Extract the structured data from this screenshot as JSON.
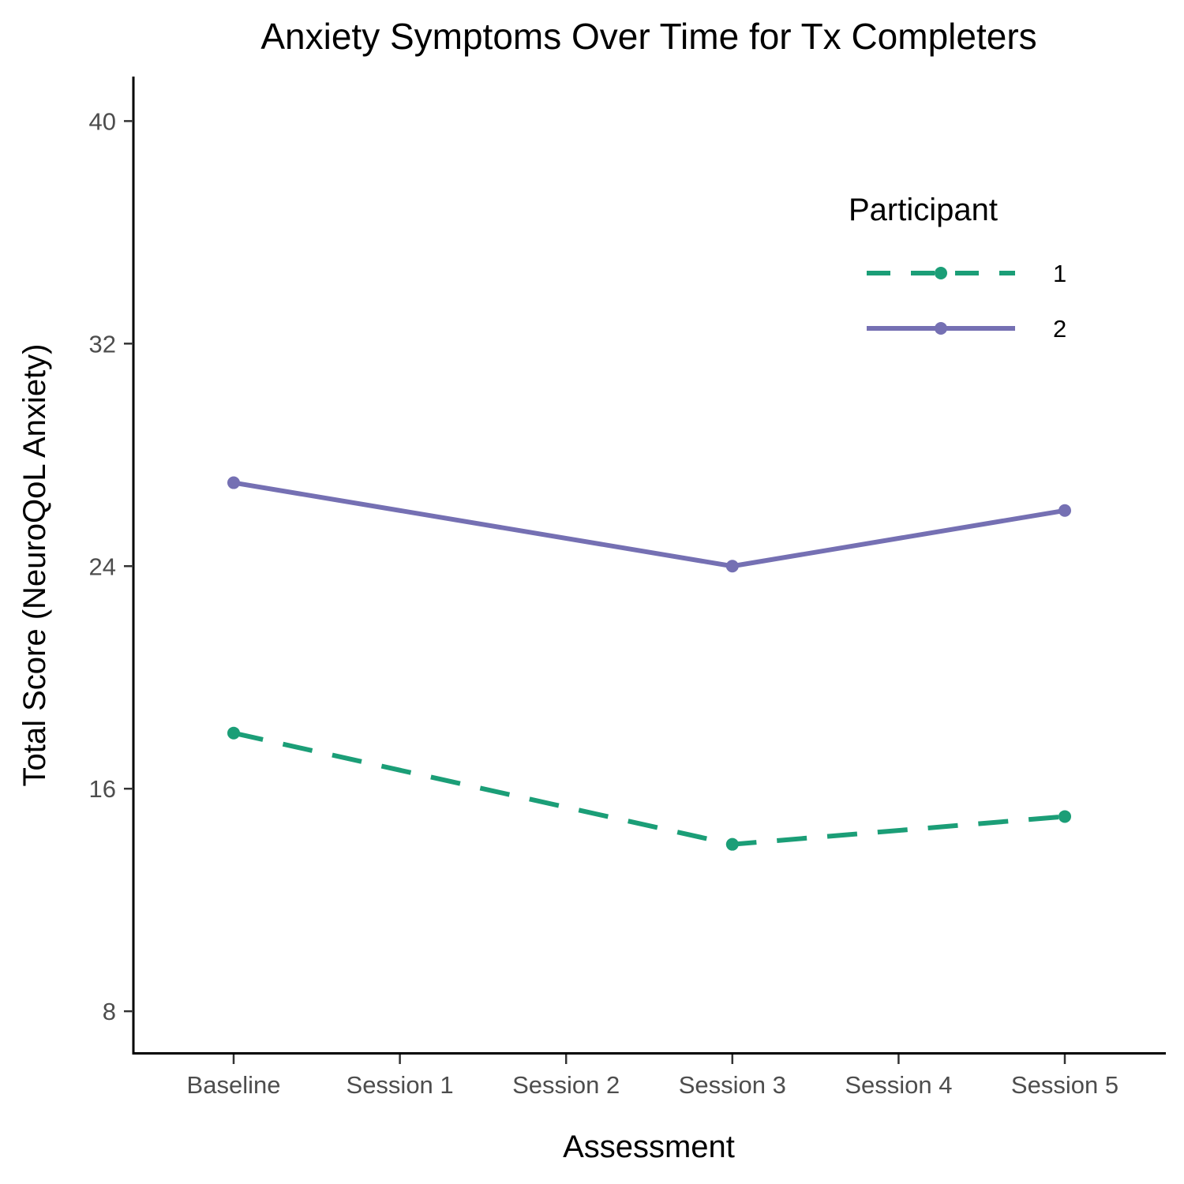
{
  "chart_data": {
    "type": "line",
    "title": "Anxiety Symptoms Over Time for Tx Completers",
    "xlabel": "Assessment",
    "ylabel": "Total Score (NeuroQoL Anxiety)",
    "categories": [
      "Baseline",
      "Session 1",
      "Session 2",
      "Session 3",
      "Session 4",
      "Session 5"
    ],
    "y_ticks": [
      8,
      16,
      24,
      32,
      40
    ],
    "ylim": [
      6.5,
      41.6
    ],
    "grid": false,
    "legend": {
      "title": "Participant",
      "position": "top-right"
    },
    "series": [
      {
        "name": "1",
        "color": "#1b9e77",
        "linestyle": "dashed",
        "x": [
          "Baseline",
          "Session 3",
          "Session 5"
        ],
        "values": [
          18,
          14,
          15
        ]
      },
      {
        "name": "2",
        "color": "#7570b3",
        "linestyle": "solid",
        "x": [
          "Baseline",
          "Session 3",
          "Session 5"
        ],
        "values": [
          27,
          24,
          26
        ]
      }
    ]
  }
}
